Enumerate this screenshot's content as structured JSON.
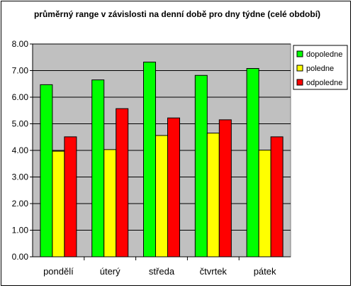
{
  "chart_data": {
    "type": "bar",
    "title": "průměrný range v závislosti na denní době pro dny týdne (celé období)",
    "xlabel": "",
    "ylabel": "",
    "categories": [
      "pondělí",
      "úterý",
      "středa",
      "čtvrtek",
      "pátek"
    ],
    "series": [
      {
        "name": "dopoledne",
        "color": "#00ff00",
        "values": [
          6.47,
          6.65,
          7.32,
          6.82,
          7.08
        ]
      },
      {
        "name": "poledne",
        "color": "#ffff00",
        "values": [
          3.97,
          4.03,
          4.56,
          4.65,
          4.01
        ]
      },
      {
        "name": "odpoledne",
        "color": "#ff0000",
        "values": [
          4.51,
          5.57,
          5.22,
          5.15,
          4.51
        ]
      }
    ],
    "ylim": [
      0,
      8
    ],
    "yticks": [
      "0.00",
      "1.00",
      "2.00",
      "3.00",
      "4.00",
      "5.00",
      "6.00",
      "7.00",
      "8.00"
    ],
    "grid": true,
    "legend": "right",
    "plot_background": "#c0c0c0"
  }
}
